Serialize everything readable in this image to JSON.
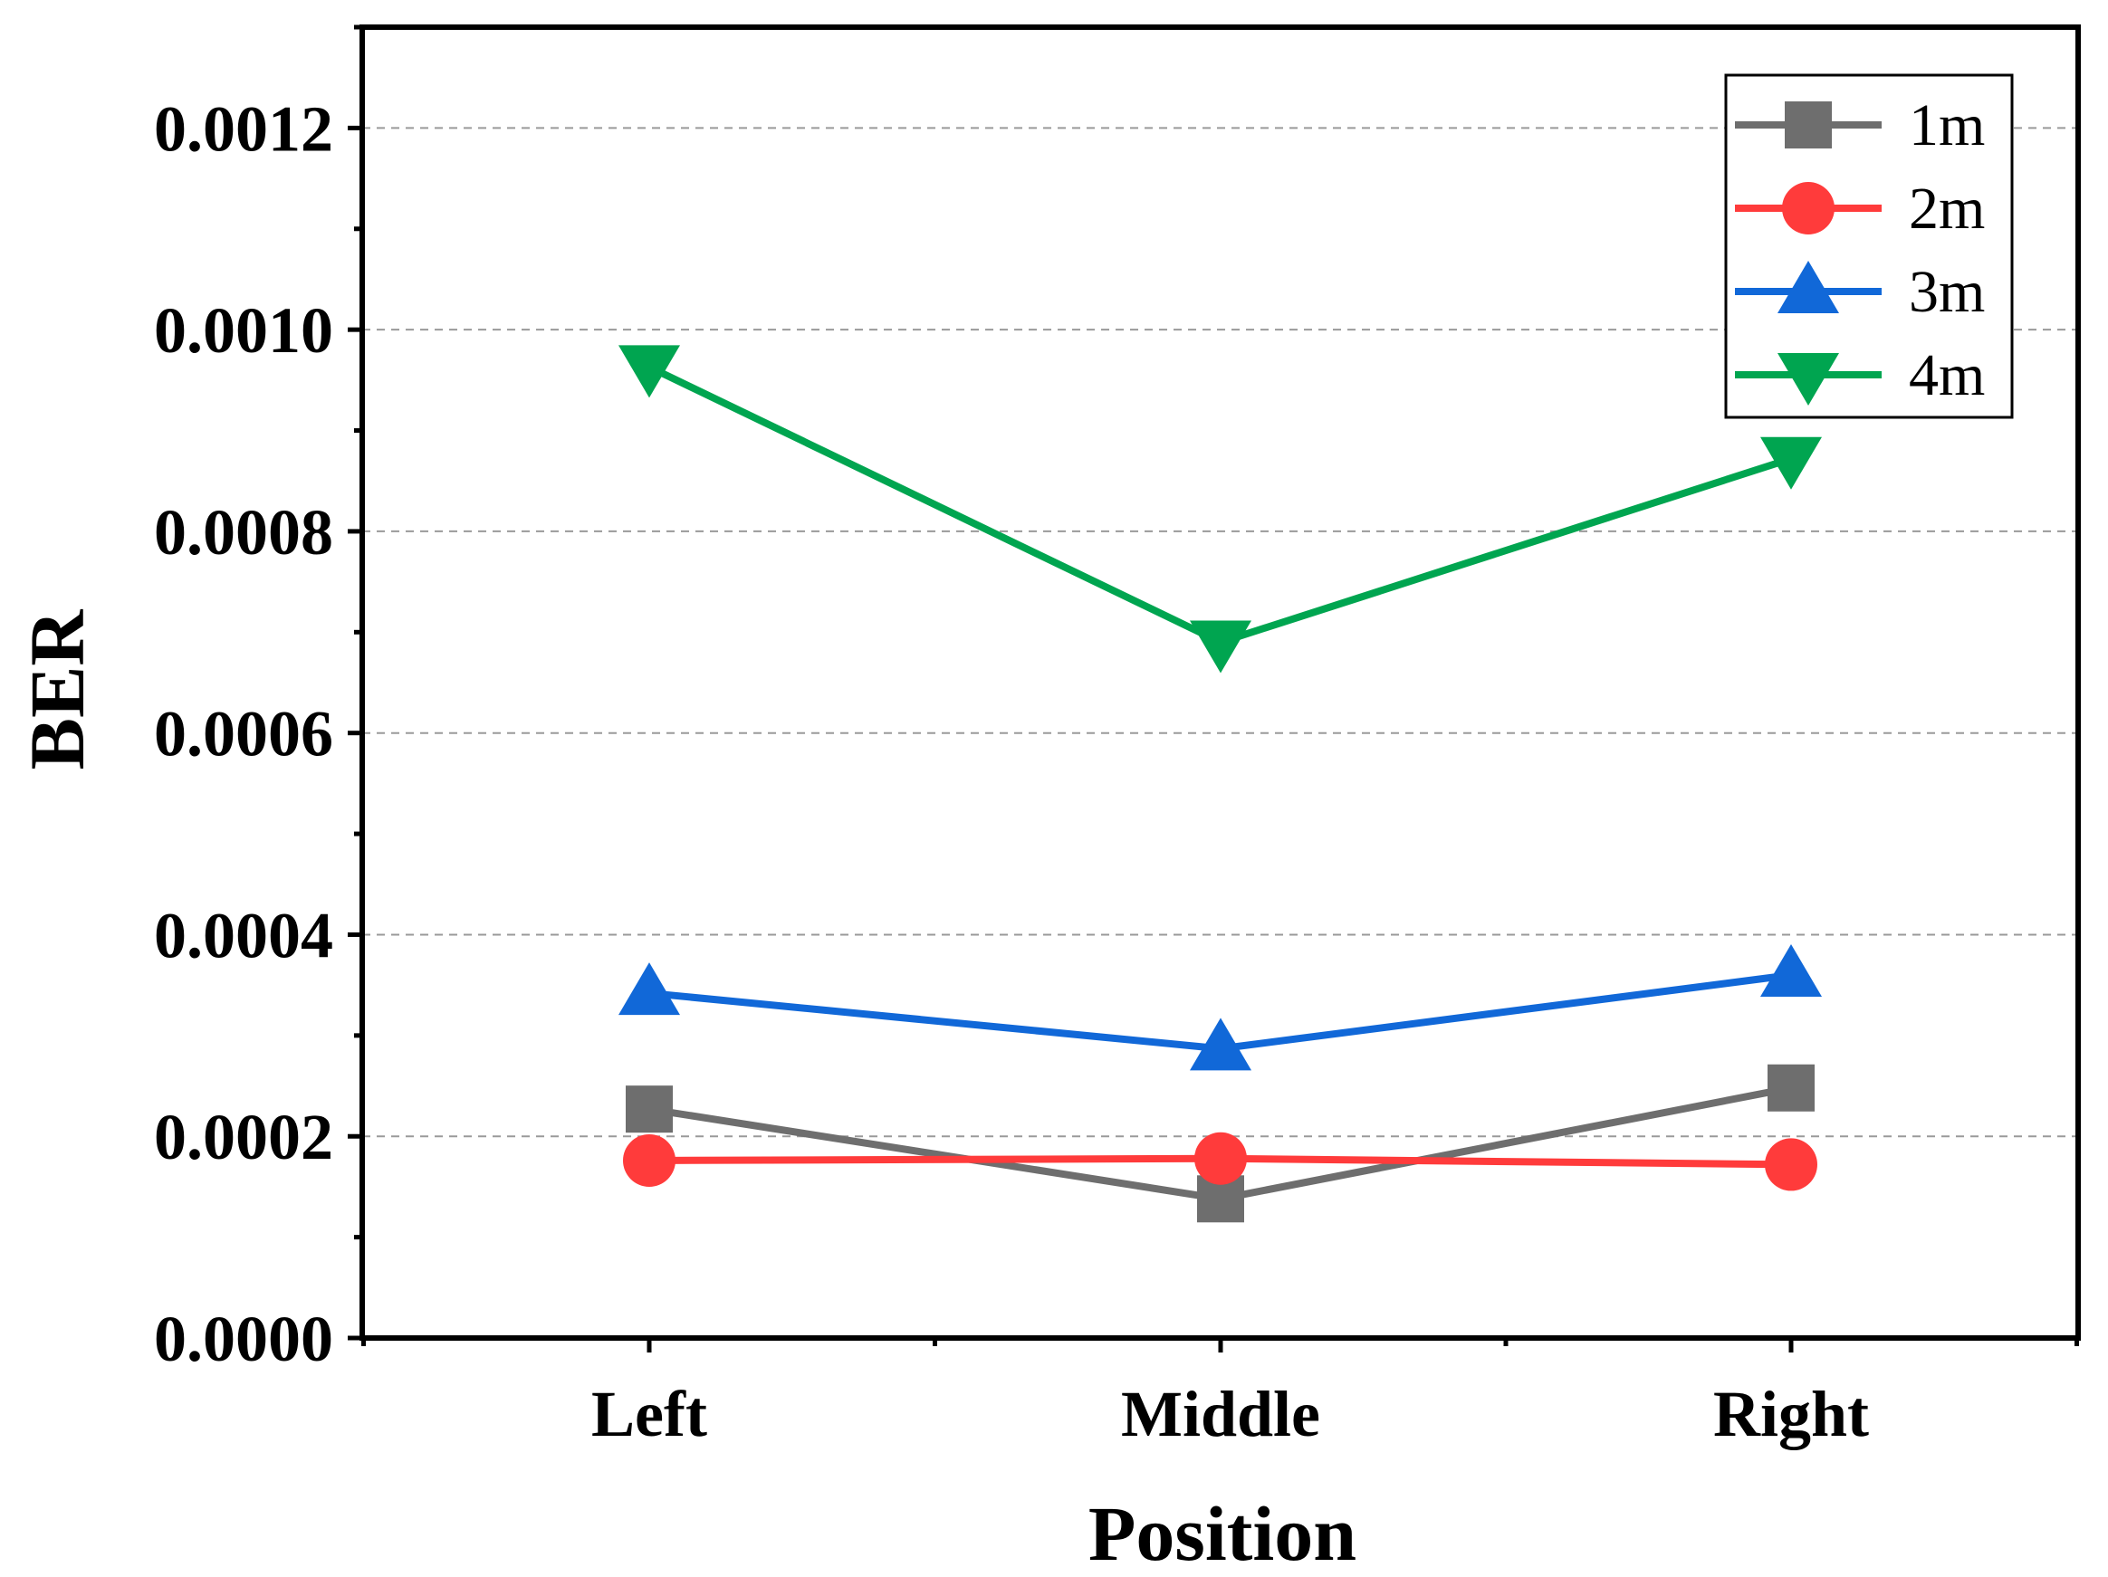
{
  "chart_data": {
    "type": "line",
    "title": "",
    "xlabel": "Position",
    "ylabel": "BER",
    "categories": [
      "Left",
      "Middle",
      "Right"
    ],
    "ylim": [
      0,
      0.0013
    ],
    "yticks": [
      0.0,
      0.0002,
      0.0004,
      0.0006,
      0.0008,
      0.001,
      0.0012
    ],
    "ytick_labels": [
      "0.0000",
      "0.0002",
      "0.0004",
      "0.0006",
      "0.0008",
      "0.0010",
      "0.0012"
    ],
    "grid": "horizontal dashed",
    "legend_position": "top-right",
    "series": [
      {
        "name": "1m",
        "marker": "square",
        "color": "#6e6e6e",
        "values": [
          0.000227,
          0.000138,
          0.000248
        ]
      },
      {
        "name": "2m",
        "marker": "circle",
        "color": "#ff3b3b",
        "values": [
          0.000176,
          0.000178,
          0.000172
        ]
      },
      {
        "name": "3m",
        "marker": "triangle-up",
        "color": "#1168d8",
        "values": [
          0.000342,
          0.000287,
          0.00036
        ]
      },
      {
        "name": "4m",
        "marker": "triangle-down",
        "color": "#00a550",
        "values": [
          0.000963,
          0.00069,
          0.000872
        ]
      }
    ]
  }
}
